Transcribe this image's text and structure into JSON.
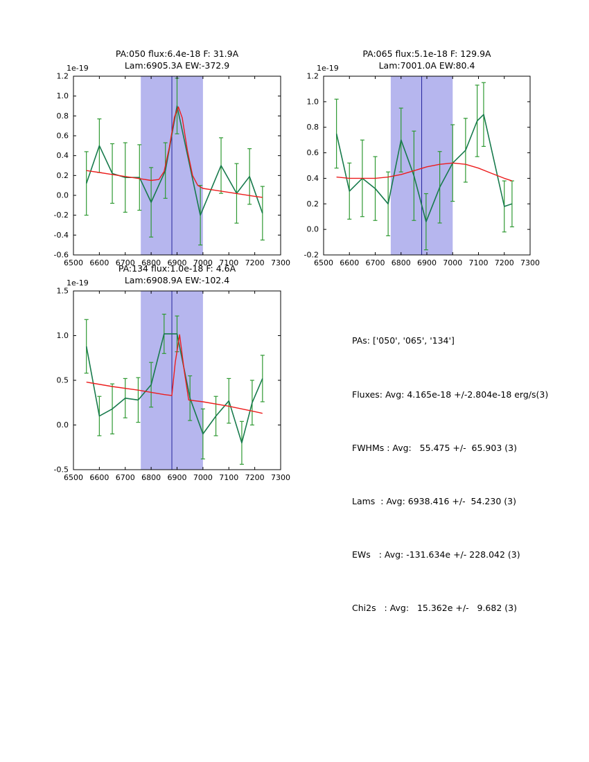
{
  "figure": {
    "background": "#ffffff"
  },
  "colors": {
    "band": "#b6b6ee",
    "vline": "#22229b",
    "data_line": "#177a4c",
    "error_bar": "#2e9932",
    "fit_line": "#ec1c1c",
    "axis": "#000000"
  },
  "chart_data": [
    {
      "id": "pa050",
      "type": "line",
      "title_line1": "PA:050 flux:6.4e-18 F: 31.9A",
      "title_line2": "Lam:6905.3A EW:-372.9",
      "y_offset_label": "1e-19",
      "xlabel": "",
      "ylabel": "",
      "xlim": [
        6500,
        7300
      ],
      "ylim": [
        -0.6,
        1.2
      ],
      "xticks": [
        6500,
        6600,
        6700,
        6800,
        6900,
        7000,
        7100,
        7200,
        7300
      ],
      "yticks": [
        -0.6,
        -0.4,
        -0.2,
        0.0,
        0.2,
        0.4,
        0.6,
        0.8,
        1.0,
        1.2
      ],
      "shaded_band_x": [
        6760,
        7000
      ],
      "vline_x": 6880,
      "series": [
        {
          "name": "spectrum",
          "x": [
            6550,
            6600,
            6650,
            6700,
            6755,
            6800,
            6855,
            6900,
            6990,
            7070,
            7130,
            7180,
            7230
          ],
          "y": [
            0.12,
            0.5,
            0.22,
            0.18,
            0.18,
            -0.07,
            0.25,
            0.9,
            -0.2,
            0.3,
            0.02,
            0.19,
            -0.18
          ],
          "yerr": [
            0.32,
            0.27,
            0.3,
            0.35,
            0.33,
            0.35,
            0.28,
            0.28,
            0.3,
            0.28,
            0.3,
            0.28,
            0.27
          ]
        },
        {
          "name": "fit",
          "x": [
            6550,
            6600,
            6650,
            6700,
            6750,
            6800,
            6830,
            6850,
            6870,
            6890,
            6905,
            6920,
            6940,
            6960,
            6980,
            7000,
            7050,
            7100,
            7150,
            7200,
            7230
          ],
          "y": [
            0.25,
            0.23,
            0.21,
            0.19,
            0.17,
            0.15,
            0.16,
            0.24,
            0.48,
            0.79,
            0.89,
            0.78,
            0.45,
            0.2,
            0.1,
            0.07,
            0.05,
            0.03,
            0.01,
            -0.01,
            -0.02
          ]
        }
      ]
    },
    {
      "id": "pa065",
      "type": "line",
      "title_line1": "PA:065 flux:5.1e-18 F: 129.9A",
      "title_line2": "Lam:7001.0A EW:80.4",
      "y_offset_label": "1e-19",
      "xlabel": "",
      "ylabel": "",
      "xlim": [
        6500,
        7300
      ],
      "ylim": [
        -0.2,
        1.2
      ],
      "xticks": [
        6500,
        6600,
        6700,
        6800,
        6900,
        7000,
        7100,
        7200,
        7300
      ],
      "yticks": [
        -0.2,
        0.0,
        0.2,
        0.4,
        0.6,
        0.8,
        1.0,
        1.2
      ],
      "shaded_band_x": [
        6760,
        7000
      ],
      "vline_x": 6880,
      "series": [
        {
          "name": "spectrum",
          "x": [
            6550,
            6600,
            6650,
            6700,
            6750,
            6800,
            6850,
            6897,
            6950,
            7000,
            7050,
            7095,
            7120,
            7200,
            7230
          ],
          "y": [
            0.75,
            0.3,
            0.4,
            0.32,
            0.2,
            0.7,
            0.42,
            0.06,
            0.33,
            0.52,
            0.62,
            0.85,
            0.9,
            0.18,
            0.2
          ],
          "yerr": [
            0.27,
            0.22,
            0.3,
            0.25,
            0.25,
            0.25,
            0.35,
            0.22,
            0.28,
            0.3,
            0.25,
            0.28,
            0.25,
            0.2,
            0.18
          ]
        },
        {
          "name": "fit",
          "x": [
            6550,
            6600,
            6650,
            6700,
            6750,
            6800,
            6850,
            6900,
            6950,
            7000,
            7050,
            7100,
            7150,
            7200,
            7230
          ],
          "y": [
            0.41,
            0.4,
            0.4,
            0.4,
            0.41,
            0.43,
            0.46,
            0.49,
            0.51,
            0.52,
            0.51,
            0.48,
            0.44,
            0.4,
            0.38
          ]
        }
      ]
    },
    {
      "id": "pa134",
      "type": "line",
      "title_line1": "PA:134 flux:1.0e-18 F: 4.6A",
      "title_line2": "Lam:6908.9A EW:-102.4",
      "y_offset_label": "1e-19",
      "xlabel": "",
      "ylabel": "",
      "xlim": [
        6500,
        7300
      ],
      "ylim": [
        -0.5,
        1.5
      ],
      "xticks": [
        6500,
        6600,
        6700,
        6800,
        6900,
        7000,
        7100,
        7200,
        7300
      ],
      "yticks": [
        -0.5,
        0.0,
        0.5,
        1.0,
        1.5
      ],
      "shaded_band_x": [
        6760,
        7000
      ],
      "vline_x": 6880,
      "series": [
        {
          "name": "spectrum",
          "x": [
            6550,
            6600,
            6650,
            6700,
            6750,
            6800,
            6850,
            6900,
            6950,
            7000,
            7050,
            7100,
            7150,
            7190,
            7230
          ],
          "y": [
            0.88,
            0.1,
            0.18,
            0.3,
            0.28,
            0.45,
            1.02,
            1.02,
            0.3,
            -0.1,
            0.1,
            0.27,
            -0.2,
            0.25,
            0.52
          ],
          "yerr": [
            0.3,
            0.22,
            0.28,
            0.22,
            0.25,
            0.25,
            0.22,
            0.2,
            0.25,
            0.28,
            0.22,
            0.25,
            0.24,
            0.25,
            0.26
          ]
        },
        {
          "name": "fit",
          "x": [
            6550,
            6650,
            6750,
            6850,
            6880,
            6893,
            6910,
            6928,
            6945,
            7000,
            7100,
            7200,
            7230
          ],
          "y": [
            0.48,
            0.43,
            0.39,
            0.34,
            0.33,
            0.7,
            1.01,
            0.6,
            0.28,
            0.26,
            0.21,
            0.15,
            0.13
          ]
        }
      ]
    }
  ],
  "stats": {
    "pas": "PAs: ['050', '065', '134']",
    "fluxes": "Fluxes: Avg: 4.165e-18 +/-2.804e-18 erg/s(3)",
    "fwhms": "FWHMs : Avg:   55.475 +/-  65.903 (3)",
    "lams": "Lams  : Avg: 6938.416 +/-  54.230 (3)",
    "ews": "EWs   : Avg: -131.634e +/- 228.042 (3)",
    "chi2s": "Chi2s   : Avg:   15.362e +/-   9.682 (3)"
  }
}
